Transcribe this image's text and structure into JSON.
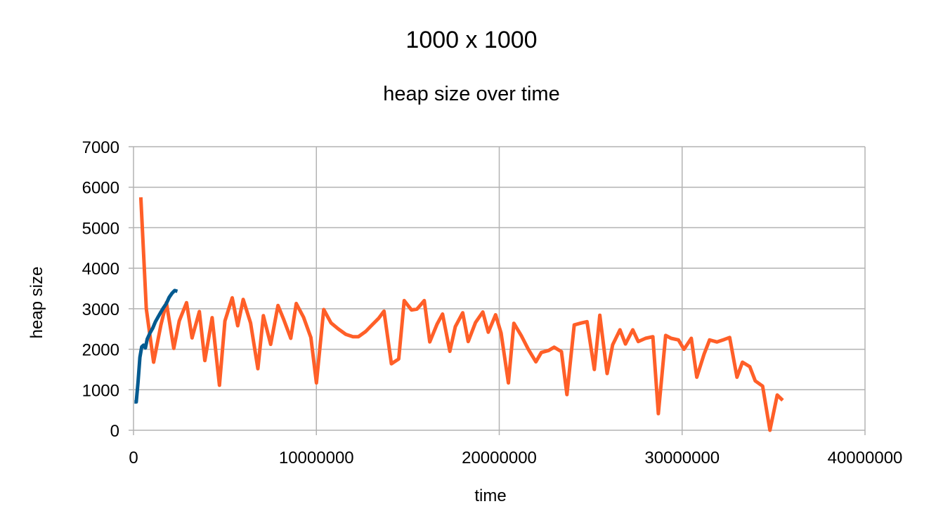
{
  "chart_data": {
    "type": "line",
    "title": "1000 x 1000",
    "subtitle": "heap size over time",
    "xlabel": "time",
    "ylabel": "heap size",
    "xlim": [
      0,
      40000000
    ],
    "ylim": [
      0,
      7000
    ],
    "x_ticks": [
      "0",
      "10000000",
      "20000000",
      "30000000",
      "40000000"
    ],
    "y_ticks": [
      "0",
      "1000",
      "2000",
      "3000",
      "4000",
      "5000",
      "6000",
      "7000"
    ],
    "grid": true,
    "legend": "none",
    "series": [
      {
        "color": "#ff5f28",
        "points": [
          [
            400000,
            5750
          ],
          [
            700000,
            3000
          ],
          [
            1100000,
            1680
          ],
          [
            1500000,
            2600
          ],
          [
            1800000,
            3150
          ],
          [
            2200000,
            2020
          ],
          [
            2500000,
            2700
          ],
          [
            2900000,
            3150
          ],
          [
            3200000,
            2280
          ],
          [
            3600000,
            2930
          ],
          [
            3900000,
            1720
          ],
          [
            4300000,
            2780
          ],
          [
            4700000,
            1110
          ],
          [
            5000000,
            2700
          ],
          [
            5400000,
            3270
          ],
          [
            5700000,
            2580
          ],
          [
            6000000,
            3230
          ],
          [
            6400000,
            2650
          ],
          [
            6800000,
            1520
          ],
          [
            7100000,
            2830
          ],
          [
            7500000,
            2120
          ],
          [
            7900000,
            3080
          ],
          [
            8200000,
            2750
          ],
          [
            8600000,
            2270
          ],
          [
            8900000,
            3130
          ],
          [
            9300000,
            2790
          ],
          [
            9700000,
            2290
          ],
          [
            10000000,
            1170
          ],
          [
            10400000,
            2980
          ],
          [
            10800000,
            2650
          ],
          [
            11200000,
            2500
          ],
          [
            11600000,
            2370
          ],
          [
            12000000,
            2310
          ],
          [
            12300000,
            2310
          ],
          [
            12700000,
            2440
          ],
          [
            13000000,
            2580
          ],
          [
            13400000,
            2760
          ],
          [
            13700000,
            2940
          ],
          [
            14100000,
            1640
          ],
          [
            14500000,
            1760
          ],
          [
            14800000,
            3200
          ],
          [
            15200000,
            2970
          ],
          [
            15500000,
            2990
          ],
          [
            15900000,
            3200
          ],
          [
            16200000,
            2180
          ],
          [
            16600000,
            2620
          ],
          [
            16900000,
            2870
          ],
          [
            17300000,
            1950
          ],
          [
            17600000,
            2560
          ],
          [
            18000000,
            2900
          ],
          [
            18300000,
            2190
          ],
          [
            18700000,
            2660
          ],
          [
            19100000,
            2920
          ],
          [
            19400000,
            2420
          ],
          [
            19800000,
            2850
          ],
          [
            20100000,
            2400
          ],
          [
            20500000,
            1170
          ],
          [
            20800000,
            2640
          ],
          [
            21200000,
            2340
          ],
          [
            21600000,
            1990
          ],
          [
            22000000,
            1690
          ],
          [
            22300000,
            1920
          ],
          [
            22700000,
            1970
          ],
          [
            23000000,
            2050
          ],
          [
            23400000,
            1940
          ],
          [
            23700000,
            880
          ],
          [
            24100000,
            2600
          ],
          [
            24500000,
            2650
          ],
          [
            24800000,
            2680
          ],
          [
            25200000,
            1500
          ],
          [
            25500000,
            2840
          ],
          [
            25900000,
            1400
          ],
          [
            26200000,
            2110
          ],
          [
            26600000,
            2480
          ],
          [
            26900000,
            2130
          ],
          [
            27300000,
            2480
          ],
          [
            27600000,
            2190
          ],
          [
            28000000,
            2270
          ],
          [
            28400000,
            2310
          ],
          [
            28700000,
            410
          ],
          [
            29100000,
            2340
          ],
          [
            29400000,
            2270
          ],
          [
            29800000,
            2230
          ],
          [
            30100000,
            2000
          ],
          [
            30500000,
            2270
          ],
          [
            30800000,
            1310
          ],
          [
            31200000,
            1880
          ],
          [
            31500000,
            2230
          ],
          [
            31900000,
            2180
          ],
          [
            32300000,
            2240
          ],
          [
            32600000,
            2290
          ],
          [
            33000000,
            1310
          ],
          [
            33300000,
            1680
          ],
          [
            33700000,
            1570
          ],
          [
            34000000,
            1220
          ],
          [
            34400000,
            1090
          ],
          [
            34800000,
            0
          ],
          [
            35200000,
            870
          ],
          [
            35500000,
            740
          ]
        ]
      },
      {
        "color": "#035a90",
        "points": [
          [
            50000,
            700
          ],
          [
            150000,
            700
          ],
          [
            250000,
            1200
          ],
          [
            350000,
            1800
          ],
          [
            450000,
            2060
          ],
          [
            550000,
            2100
          ],
          [
            650000,
            2030
          ],
          [
            750000,
            2250
          ],
          [
            900000,
            2400
          ],
          [
            1050000,
            2520
          ],
          [
            1200000,
            2680
          ],
          [
            1350000,
            2800
          ],
          [
            1500000,
            2920
          ],
          [
            1650000,
            3030
          ],
          [
            1800000,
            3130
          ],
          [
            1950000,
            3280
          ],
          [
            2100000,
            3380
          ],
          [
            2250000,
            3450
          ],
          [
            2400000,
            3430
          ]
        ]
      }
    ]
  }
}
